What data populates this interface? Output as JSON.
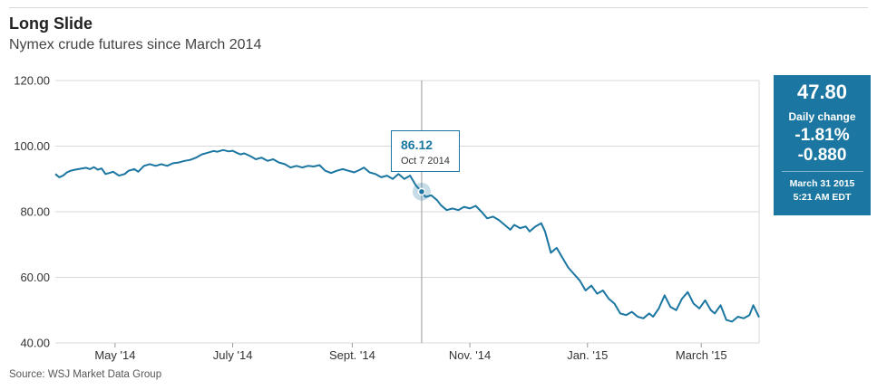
{
  "header": {
    "title": "Long Slide",
    "subtitle": "Nymex crude futures since March 2014",
    "source": "Source: WSJ Market Data Group"
  },
  "panel": {
    "last_value": "47.80",
    "daily_change_label": "Daily change",
    "change_pct": "-1.81%",
    "change_abs": "-0.880",
    "date": "March 31 2015",
    "time": "5:21 AM EDT"
  },
  "tooltip": {
    "value": "86.12",
    "date": "Oct 7 2014"
  },
  "colors": {
    "line": "#1b76a1",
    "panel_bg": "#1b76a1",
    "grid": "#d9d9d9"
  },
  "chart_data": {
    "type": "line",
    "title": "Long Slide",
    "subtitle": "Nymex crude futures since March 2014",
    "xlabel": "",
    "ylabel": "",
    "ylim": [
      40,
      120
    ],
    "y_ticks": [
      {
        "value": 120,
        "label": "120.00"
      },
      {
        "value": 100,
        "label": "100.00"
      },
      {
        "value": 80,
        "label": "80.00"
      },
      {
        "value": 60,
        "label": "60.00"
      },
      {
        "value": 40,
        "label": "40.00"
      }
    ],
    "x_range": [
      "2014-03-31",
      "2015-03-31"
    ],
    "x_ticks": [
      {
        "day": 31,
        "label": "May '14"
      },
      {
        "day": 92,
        "label": "July '14"
      },
      {
        "day": 154,
        "label": "Sept. '14"
      },
      {
        "day": 215,
        "label": "Nov. '14"
      },
      {
        "day": 276,
        "label": "Jan. '15"
      },
      {
        "day": 335,
        "label": "March '15"
      }
    ],
    "highlight": {
      "day": 190,
      "value": 86.12,
      "label": "Oct 7 2014"
    },
    "series": [
      {
        "name": "Nymex crude futures",
        "days": [
          0,
          2,
          4,
          6,
          8,
          10,
          12,
          14,
          16,
          18,
          20,
          22,
          24,
          26,
          28,
          30,
          33,
          36,
          38,
          41,
          43,
          46,
          49,
          52,
          55,
          58,
          61,
          64,
          67,
          70,
          73,
          76,
          79,
          82,
          84,
          87,
          90,
          92,
          94,
          96,
          98,
          101,
          104,
          107,
          110,
          113,
          116,
          119,
          122,
          125,
          128,
          131,
          134,
          137,
          140,
          143,
          146,
          149,
          152,
          155,
          158,
          160,
          163,
          166,
          169,
          172,
          175,
          178,
          181,
          184,
          187,
          190,
          192,
          195,
          198,
          200,
          203,
          206,
          209,
          212,
          215,
          218,
          221,
          224,
          227,
          230,
          233,
          236,
          238,
          241,
          244,
          246,
          249,
          252,
          254,
          257,
          260,
          263,
          266,
          269,
          272,
          275,
          278,
          281,
          284,
          287,
          290,
          293,
          296,
          299,
          302,
          305,
          308,
          310,
          313,
          316,
          319,
          322,
          325,
          328,
          331,
          334,
          337,
          340,
          342,
          345,
          348,
          351,
          354,
          357,
          360,
          362,
          365
        ],
        "values": [
          91.5,
          90.5,
          91.0,
          92.0,
          92.5,
          92.8,
          93.0,
          93.2,
          93.4,
          93.0,
          93.6,
          92.8,
          93.2,
          91.5,
          91.8,
          92.2,
          91.0,
          91.5,
          92.5,
          93.0,
          92.2,
          94.0,
          94.5,
          94.0,
          94.5,
          94.0,
          94.8,
          95.0,
          95.5,
          95.8,
          96.5,
          97.5,
          98.0,
          98.5,
          98.3,
          98.8,
          98.4,
          98.6,
          98.0,
          97.5,
          97.8,
          97.0,
          96.0,
          96.5,
          95.5,
          96.0,
          95.0,
          94.5,
          93.5,
          94.0,
          93.5,
          94.0,
          93.8,
          94.2,
          92.5,
          91.8,
          92.5,
          93.0,
          92.5,
          92.0,
          92.8,
          93.5,
          92.0,
          91.5,
          90.5,
          91.0,
          90.0,
          91.5,
          90.0,
          91.0,
          88.0,
          86.12,
          84.5,
          85.0,
          83.5,
          82.0,
          80.5,
          81.0,
          80.5,
          81.5,
          81.0,
          81.8,
          80.0,
          78.0,
          78.5,
          77.5,
          76.0,
          74.5,
          76.0,
          75.0,
          75.5,
          74.0,
          75.5,
          76.5,
          74.0,
          67.5,
          69.0,
          66.0,
          63.0,
          61.0,
          59.0,
          56.0,
          57.5,
          55.0,
          56.0,
          53.5,
          52.0,
          49.0,
          48.5,
          49.5,
          48.0,
          47.5,
          49.0,
          48.0,
          50.5,
          54.5,
          51.0,
          50.0,
          53.5,
          55.5,
          52.0,
          50.5,
          53.0,
          50.0,
          49.0,
          51.5,
          47.0,
          46.5,
          48.0,
          47.5,
          48.5,
          51.5,
          47.8
        ]
      }
    ]
  }
}
